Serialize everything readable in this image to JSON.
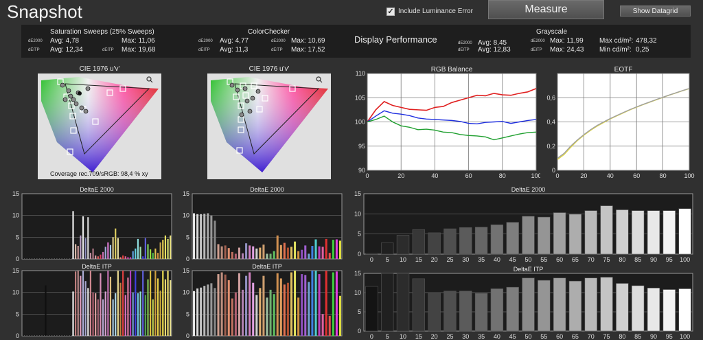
{
  "app": {
    "title": "Snapshot"
  },
  "toolbar": {
    "include_luminance_error": "Include Luminance Error",
    "include_luminance_checked": true,
    "measure_label": "Measure",
    "show_datagrid_label": "Show Datagrid"
  },
  "stats": {
    "saturation": {
      "title": "Saturation Sweeps (25% Sweeps)",
      "de2000_label": "dE2000",
      "deitp_label": "dEITP",
      "de2000_avg": "Avg: 4,78",
      "de2000_max": "Max: 11,06",
      "deitp_avg": "Avg: 12,34",
      "deitp_max": "Max: 19,68"
    },
    "colorchecker": {
      "title": "ColorChecker",
      "de2000_label": "dE2000",
      "deitp_label": "dEITP",
      "de2000_avg": "Avg: 4,77",
      "de2000_max": "Max: 10,69",
      "deitp_avg": "Avg: 11,3",
      "deitp_max": "Max: 17,52"
    },
    "display_performance": "Display Performance",
    "grayscale": {
      "title": "Grayscale",
      "de2000_label": "dE2000",
      "deitp_label": "dEITP",
      "de2000_avg": "Avg: 8,45",
      "de2000_max": "Max: 11,99",
      "deitp_avg": "Avg: 12,83",
      "deitp_max": "Max: 24,43",
      "max_lum_label": "Max cd/m²:",
      "max_lum": "478,32",
      "min_lum_label": "Min cd/m²:",
      "min_lum": "0,25"
    }
  },
  "cie": {
    "left_title": "CIE 1976 u'v'",
    "right_title": "CIE 1976 u'v'",
    "coverage": "Coverage rec.709/sRGB:  98,4 % xy",
    "zoom_icon": "magnifier-icon"
  },
  "chart_data": [
    {
      "type": "line",
      "title": "RGB Balance",
      "x": [
        0,
        5,
        10,
        15,
        20,
        25,
        30,
        35,
        40,
        45,
        50,
        55,
        60,
        65,
        70,
        75,
        80,
        85,
        90,
        95,
        100
      ],
      "xlim": [
        0,
        100
      ],
      "ylim": [
        90,
        110
      ],
      "xticks": [
        0,
        20,
        40,
        60,
        80,
        100
      ],
      "yticks": [
        90,
        95,
        100,
        105,
        110
      ],
      "grid": true,
      "series": [
        {
          "color": "#e02020",
          "values": [
            100,
            102.5,
            104.2,
            103.4,
            103.0,
            102.6,
            102.5,
            102.4,
            103.0,
            103.2,
            104.0,
            104.5,
            105.0,
            105.5,
            105.4,
            105.9,
            105.6,
            105.5,
            105.9,
            106.2,
            106.9
          ]
        },
        {
          "color": "#2030e0",
          "values": [
            100,
            101.2,
            102.3,
            101.8,
            101.6,
            101.3,
            100.8,
            100.6,
            100.5,
            100.4,
            100.3,
            100.1,
            99.7,
            99.6,
            99.9,
            100.0,
            100.1,
            99.7,
            100.0,
            100.3,
            100.5
          ]
        },
        {
          "color": "#20a030",
          "values": [
            100,
            100.5,
            101.2,
            100.0,
            99.2,
            98.9,
            98.4,
            98.5,
            98.3,
            97.9,
            97.8,
            97.4,
            97.2,
            97.1,
            96.9,
            96.3,
            96.7,
            97.1,
            97.5,
            97.8,
            97.9
          ]
        }
      ]
    },
    {
      "type": "line",
      "title": "EOTF",
      "x": [
        0,
        5,
        10,
        15,
        20,
        25,
        30,
        35,
        40,
        45,
        50,
        55,
        60,
        65,
        70,
        75,
        80,
        85,
        90,
        95,
        100
      ],
      "xlim": [
        0,
        100
      ],
      "ylim": [
        0,
        0.8
      ],
      "xticks": [
        0,
        20,
        40,
        60,
        80,
        100
      ],
      "yticks": [
        0,
        0.2,
        0.4,
        0.6
      ],
      "ytick_labels": [
        "0",
        "0,2",
        "0,4",
        "0,6"
      ],
      "grid": true,
      "series": [
        {
          "color": "#e0d84a",
          "values": [
            0.09,
            0.13,
            0.19,
            0.245,
            0.29,
            0.33,
            0.365,
            0.395,
            0.425,
            0.45,
            0.475,
            0.5,
            0.522,
            0.543,
            0.563,
            0.583,
            0.603,
            0.622,
            0.64,
            0.658,
            0.675
          ]
        },
        {
          "color": "#a0a0a0",
          "values": [
            0.1,
            0.14,
            0.2,
            0.25,
            0.295,
            0.335,
            0.37,
            0.4,
            0.428,
            0.453,
            0.478,
            0.502,
            0.524,
            0.545,
            0.565,
            0.585,
            0.604,
            0.623,
            0.641,
            0.659,
            0.676
          ]
        }
      ]
    },
    {
      "type": "bar",
      "title": "DeltaE 2000",
      "ylim": [
        0,
        15
      ],
      "yticks": [
        0,
        5,
        10,
        15
      ],
      "values": [
        0.1,
        0.1,
        0.2,
        0.1,
        0.2,
        0.3,
        0.1,
        0.2,
        0.1,
        0.4,
        0.1,
        0.1,
        0.2,
        0.3,
        0.2,
        0.1,
        0.1,
        0.2,
        0.1,
        0.1,
        11.0,
        3.4,
        3.0,
        5.4,
        9.8,
        4.8,
        9.6,
        1.4,
        2.4,
        0.8,
        0.6,
        1.0,
        1.6,
        2.8,
        3.8,
        3.2,
        5.0,
        7.0,
        4.8,
        0.4,
        0.8,
        0.6,
        0.4,
        0.4,
        1.8,
        2.4,
        4.6,
        2.8,
        0.6,
        4.8,
        3.4,
        2.2,
        1.4,
        2.4,
        1.4,
        3.8,
        4.4,
        5.4,
        4.6,
        5.4
      ],
      "colors": [
        "#1a1a1a",
        "#1a1a1a",
        "#1a1a1a",
        "#1a1a1a",
        "#1a1a1a",
        "#1a1a1a",
        "#1a1a1a",
        "#1a1a1a",
        "#1a1a1a",
        "#1a1a1a",
        "#1a1a1a",
        "#1a1a1a",
        "#1a1a1a",
        "#1a1a1a",
        "#1a1a1a",
        "#1a1a1a",
        "#1a1a1a",
        "#1a1a1a",
        "#1a1a1a",
        "#1a1a1a",
        "#f0f0f0",
        "#d8b8a8",
        "#c89898",
        "#b8a0c8",
        "#e8e8e8",
        "#9090c0",
        "#d8d8d8",
        "#c090a0",
        "#b07888",
        "#d8a0a8",
        "#e06060",
        "#d84060",
        "#c870b0",
        "#a0a8d8",
        "#d878d0",
        "#a8c8e8",
        "#d8c888",
        "#e0d060",
        "#e8e0a0",
        "#f08080",
        "#e04040",
        "#e06090",
        "#d040b0",
        "#c040c0",
        "#60a0e0",
        "#60d0e0",
        "#90e0e0",
        "#a0e0b0",
        "#4040e0",
        "#6060e0",
        "#80d060",
        "#a0e040",
        "#50c050",
        "#e0c050",
        "#d09040",
        "#c8a850",
        "#e8d050",
        "#e8e060",
        "#d8e070",
        "#e8e080"
      ]
    },
    {
      "type": "bar",
      "title": "DeltaE ITP",
      "ylim": [
        0,
        15
      ],
      "yticks": [
        0,
        5,
        10,
        15
      ],
      "values": [
        0.2,
        0.2,
        0.2,
        0.2,
        0.2,
        0.2,
        0.2,
        0.2,
        0.2,
        11.6,
        0.2,
        0.2,
        0.2,
        0.2,
        0.2,
        0.2,
        0.2,
        0.2,
        0.2,
        0.2,
        10.2,
        14.8,
        15.0,
        13.8,
        15.0,
        12.6,
        11.0,
        15.0,
        10.0,
        9.8,
        8.4,
        14.4,
        8.4,
        10.2,
        15.0,
        13.6,
        8.4,
        9.8,
        15.0,
        12.2,
        15.0,
        9.4,
        13.4,
        15.0,
        10.0,
        15.0,
        9.8,
        10.2,
        15.0,
        9.4,
        13.0,
        15.0,
        8.4,
        15.0,
        13.2,
        10.4,
        15.0,
        13.0,
        15.0,
        12.8
      ],
      "colors": [
        "#1a1a1a",
        "#1a1a1a",
        "#1a1a1a",
        "#1a1a1a",
        "#1a1a1a",
        "#1a1a1a",
        "#1a1a1a",
        "#1a1a1a",
        "#1a1a1a",
        "#101010",
        "#1a1a1a",
        "#1a1a1a",
        "#1a1a1a",
        "#1a1a1a",
        "#1a1a1a",
        "#1a1a1a",
        "#1a1a1a",
        "#1a1a1a",
        "#1a1a1a",
        "#1a1a1a",
        "#f0f0f0",
        "#c08080",
        "#b88888",
        "#e0a0c0",
        "#b0b0d8",
        "#a8a8d0",
        "#e8e8e8",
        "#d08890",
        "#b06070",
        "#e0a0a0",
        "#a06070",
        "#d890b8",
        "#b8a8d0",
        "#d8a0d0",
        "#c070b0",
        "#e0c080",
        "#a8c8e0",
        "#b0d8e8",
        "#e8d890",
        "#c08040",
        "#e04040",
        "#d870c0",
        "#e078a0",
        "#b040c0",
        "#70a0d0",
        "#4040e0",
        "#70c8e0",
        "#90e0d0",
        "#6060e0",
        "#50a050",
        "#80c050",
        "#e0c040",
        "#c0d050",
        "#d0a040",
        "#e8d048",
        "#c8a840",
        "#f0e050",
        "#e8d870",
        "#f0e070",
        "#e8e090"
      ]
    },
    {
      "type": "bar",
      "title": "DeltaE 2000",
      "ylim": [
        0,
        15
      ],
      "yticks": [
        0,
        5,
        10,
        15
      ],
      "values": [
        10.5,
        10.3,
        10.3,
        10.4,
        10.5,
        10.0,
        8.8,
        3.4,
        2.9,
        3.1,
        2.5,
        1.6,
        1.2,
        2.6,
        1.3,
        3.6,
        3.1,
        2.9,
        2.4,
        2.6,
        3.3,
        1.2,
        1.2,
        1.8,
        5.4,
        3.2,
        3.7,
        2.6,
        2.8,
        4.0,
        1.8,
        2.1,
        3.1,
        1.2,
        3.0,
        4.5,
        2.9,
        2.8,
        4.6,
        1.4,
        4.4,
        4.5,
        4.2
      ],
      "colors": [
        "#e8e8e8",
        "#d8d8d8",
        "#c8c8c8",
        "#b8b8b8",
        "#a8a8a8",
        "#989898",
        "#888888",
        "#d0a090",
        "#c09080",
        "#a06050",
        "#e09070",
        "#c07060",
        "#b06070",
        "#d0a0a0",
        "#b080b0",
        "#9090c0",
        "#d080c0",
        "#e0a0e0",
        "#d0d0d0",
        "#e0b070",
        "#d0a070",
        "#a0c0a0",
        "#70b070",
        "#60c060",
        "#d09050",
        "#e0a060",
        "#e07050",
        "#b05030",
        "#e0c060",
        "#e0e060",
        "#d09040",
        "#9050c0",
        "#a060d0",
        "#70a0d0",
        "#4080e0",
        "#50d0d0",
        "#c040c0",
        "#e060a0",
        "#e03030",
        "#e05050",
        "#40d040",
        "#e040e0",
        "#e0e040"
      ]
    },
    {
      "type": "bar",
      "title": "DeltaE ITP",
      "ylim": [
        0,
        15
      ],
      "yticks": [
        0,
        5,
        10,
        15
      ],
      "values": [
        10.3,
        10.9,
        11.1,
        11.5,
        11.8,
        12.1,
        11.0,
        14.2,
        14.6,
        14.1,
        12.8,
        8.6,
        10.0,
        14.4,
        10.6,
        13.8,
        14.6,
        12.2,
        9.4,
        11.0,
        13.8,
        8.8,
        10.6,
        9.6,
        14.4,
        13.2,
        11.8,
        12.2,
        14.6,
        15.0,
        8.8,
        14.2,
        14.0,
        12.4,
        15.0,
        15.0,
        14.2,
        5.0,
        15.0,
        4.6,
        14.6,
        14.8,
        9.2
      ],
      "colors": [
        "#e8e8e8",
        "#d8d8d8",
        "#c8c8c8",
        "#b8b8b8",
        "#a8a8a8",
        "#989898",
        "#888888",
        "#d0a090",
        "#c09080",
        "#a06050",
        "#e09070",
        "#c07060",
        "#b06070",
        "#d0a0a0",
        "#b080b0",
        "#9090c0",
        "#d080c0",
        "#e0a0e0",
        "#d0d0d0",
        "#e0b070",
        "#d0a070",
        "#a0c0a0",
        "#70b070",
        "#60c060",
        "#d09050",
        "#e0a060",
        "#e07050",
        "#b05030",
        "#e0c060",
        "#e0e060",
        "#d09040",
        "#9050c0",
        "#a060d0",
        "#70a0d0",
        "#4080e0",
        "#50d0d0",
        "#c040c0",
        "#e060a0",
        "#e03030",
        "#e05050",
        "#40d040",
        "#e040e0",
        "#e0e040"
      ]
    },
    {
      "type": "bar",
      "title": "DeltaE 2000",
      "categories": [
        "0",
        "5",
        "10",
        "15",
        "20",
        "25",
        "30",
        "35",
        "40",
        "45",
        "50",
        "55",
        "60",
        "65",
        "70",
        "75",
        "80",
        "85",
        "90",
        "95",
        "100"
      ],
      "values": [
        0.2,
        2.8,
        4.7,
        6.1,
        5.3,
        6.3,
        6.6,
        6.7,
        7.3,
        7.9,
        9.4,
        9.2,
        10.3,
        9.9,
        10.8,
        12.0,
        11.0,
        10.8,
        10.8,
        10.8,
        11.3
      ],
      "ylim": [
        0,
        15
      ],
      "yticks": [
        0,
        5,
        10,
        15
      ]
    },
    {
      "type": "bar",
      "title": "DeltaE ITP",
      "categories": [
        "0",
        "5",
        "10",
        "15",
        "20",
        "25",
        "30",
        "35",
        "40",
        "45",
        "50",
        "55",
        "60",
        "65",
        "70",
        "75",
        "80",
        "85",
        "90",
        "95",
        "100"
      ],
      "values": [
        11.6,
        15.0,
        15.0,
        13.6,
        10.0,
        10.4,
        10.4,
        9.8,
        11.0,
        11.4,
        13.8,
        13.2,
        13.8,
        13.0,
        13.8,
        14.0,
        12.4,
        11.8,
        11.2,
        10.8,
        11.0
      ],
      "ylim": [
        0,
        15
      ],
      "yticks": [
        0,
        5,
        10,
        15
      ]
    }
  ]
}
